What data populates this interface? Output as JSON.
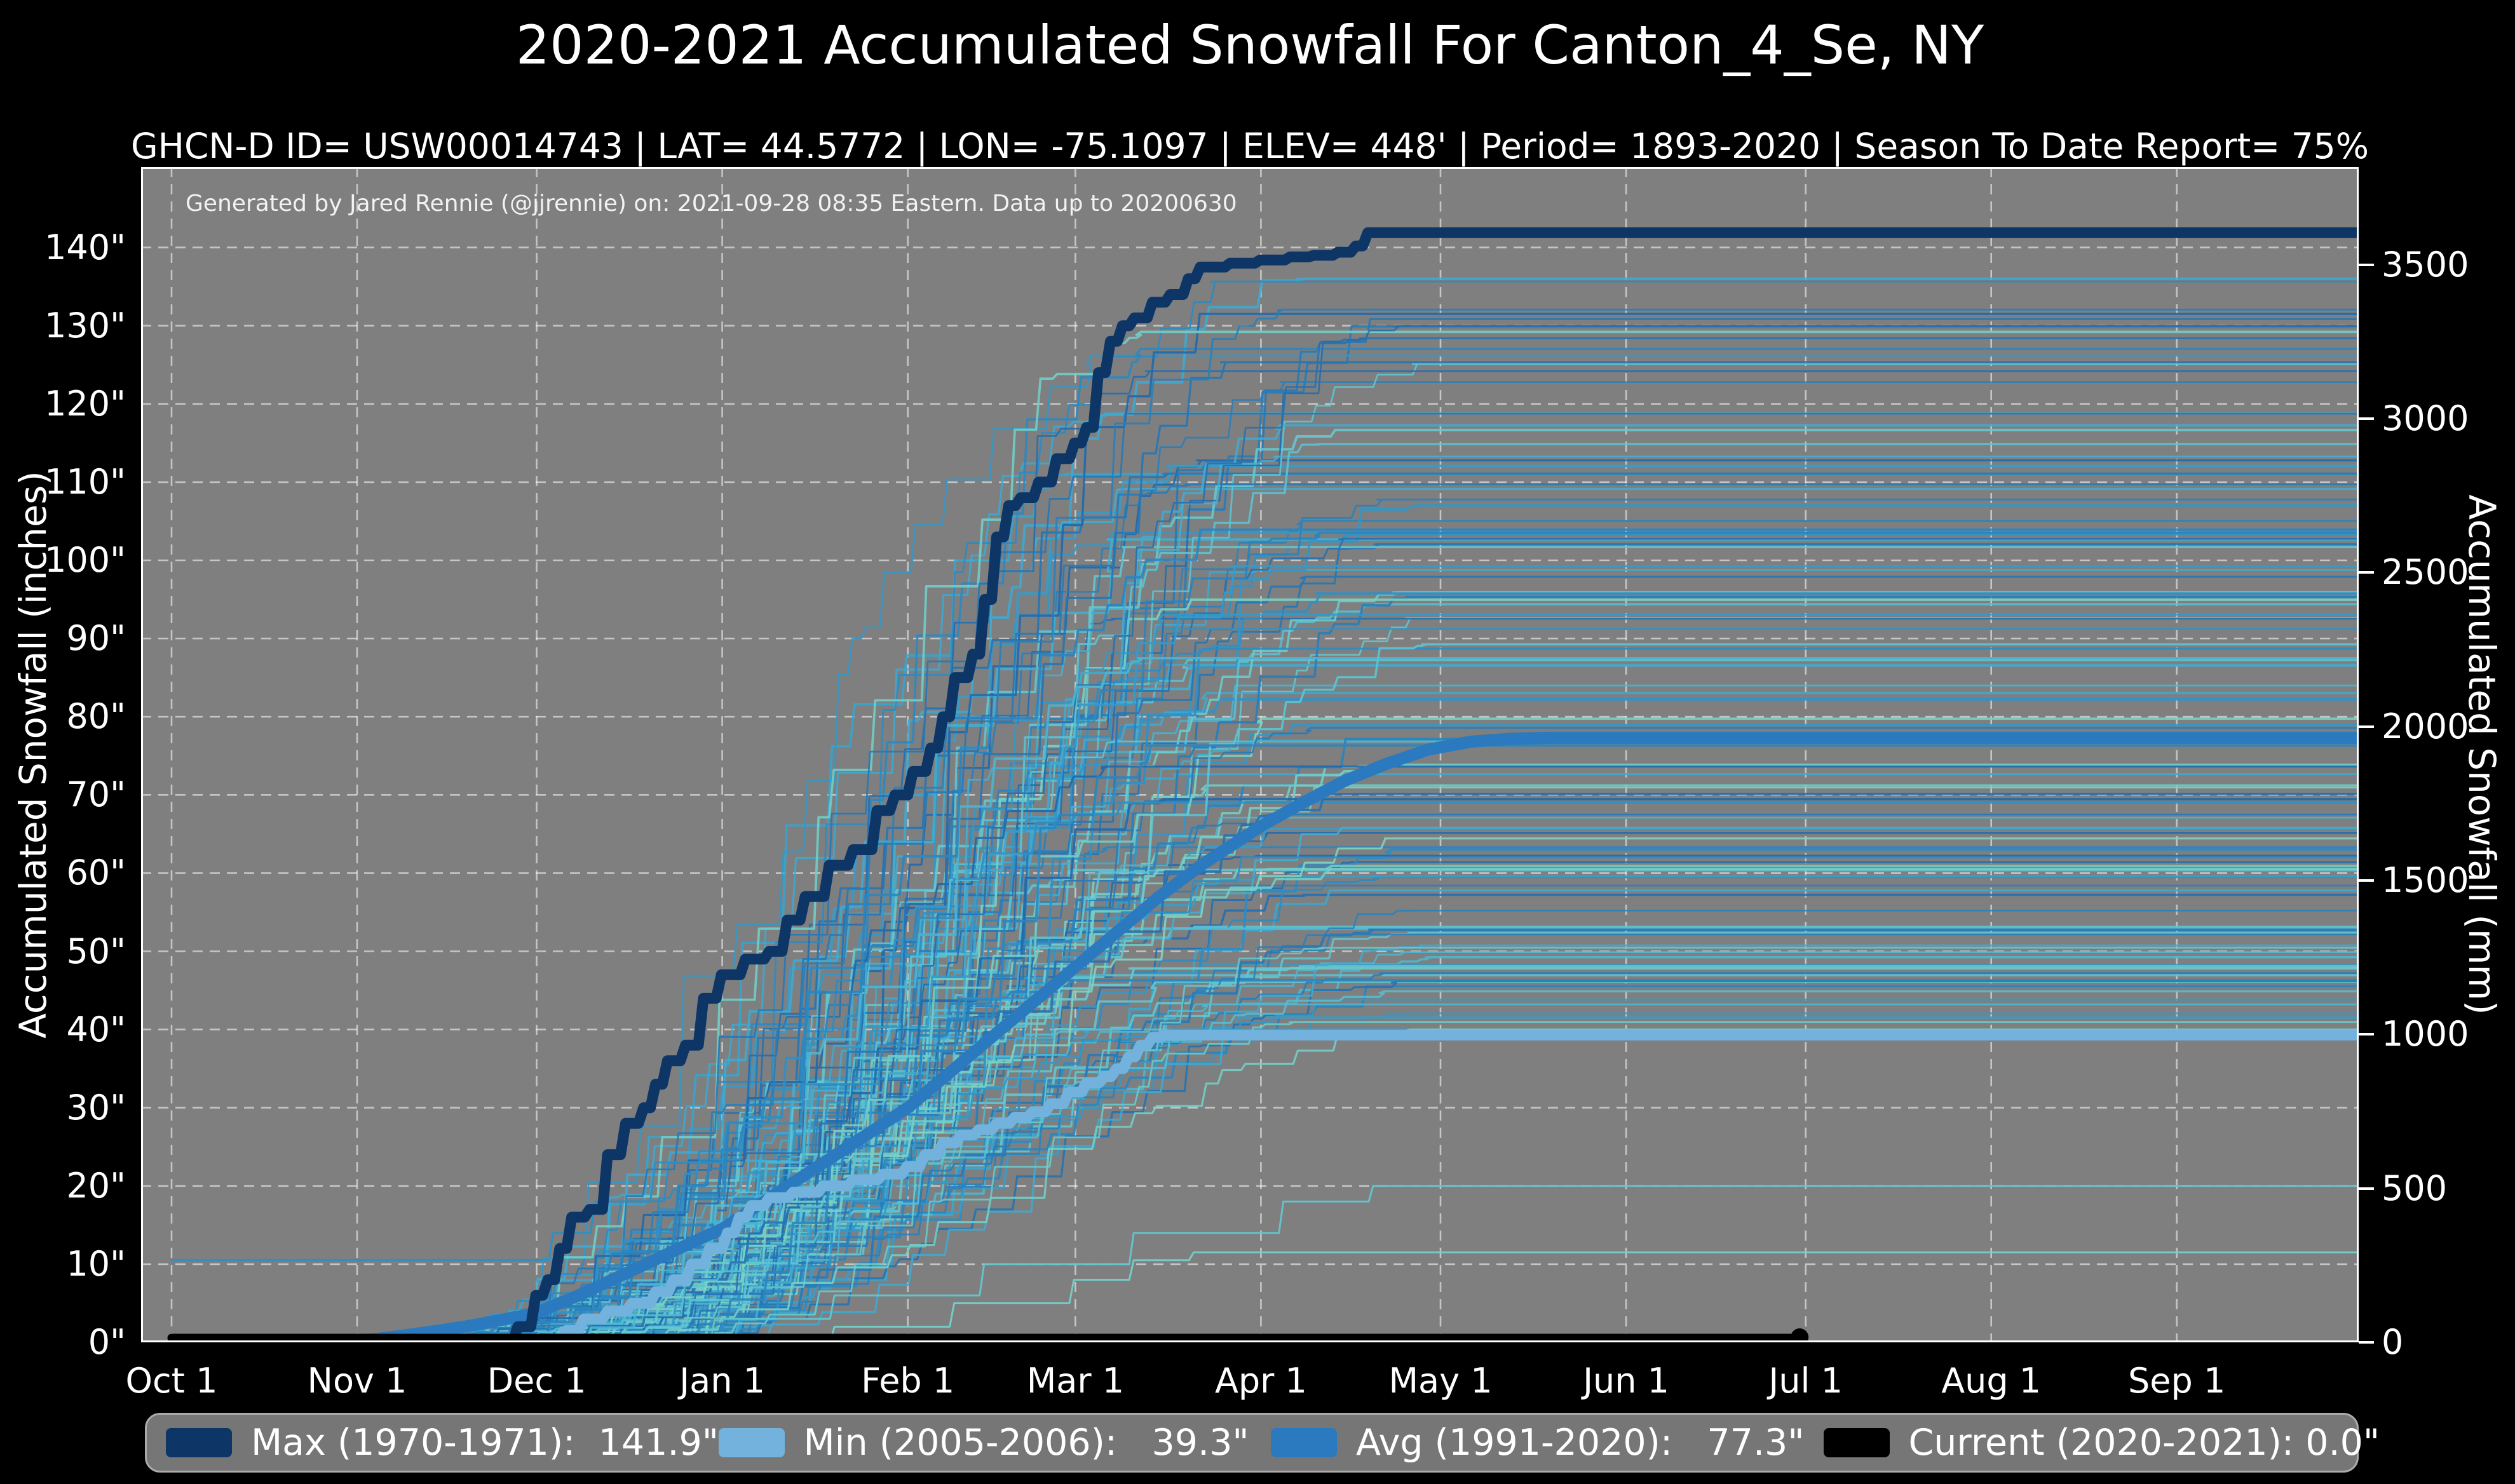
{
  "chart_data": {
    "type": "line",
    "title": "2020-2021 Accumulated Snowfall For Canton_4_Se, NY",
    "subtitle": "GHCN-D ID= USW00014743 | LAT= 44.5772 | LON= -75.1097 | ELEV= 448' | Period= 1893-2020 | Season To Date Report= 75%",
    "annotation": "Generated by Jared Rennie (@jjrennie) on: 2021-09-28 08:35 Eastern. Data up to 20200630",
    "plot": {
      "background": "#7f7f7f",
      "grid_color": "rgba(255,255,255,0.55)",
      "spine_color": "#ffffff",
      "page_background": "#000000"
    },
    "x_axis": {
      "label": "",
      "unit": "day of season (Oct 1 = 0)",
      "tick_labels": [
        "Oct 1",
        "Nov 1",
        "Dec 1",
        "Jan 1",
        "Feb 1",
        "Mar 1",
        "Apr 1",
        "May 1",
        "Jun 1",
        "Jul 1",
        "Aug 1",
        "Sep 1"
      ],
      "tick_days": [
        0,
        31,
        61,
        92,
        123,
        151,
        182,
        212,
        243,
        273,
        304,
        335
      ],
      "range_days": [
        0,
        365
      ]
    },
    "y_axis_left": {
      "label": "Accumulated Snowfall (inches)",
      "tick_labels": [
        "0\"",
        "10\"",
        "20\"",
        "30\"",
        "40\"",
        "50\"",
        "60\"",
        "70\"",
        "80\"",
        "90\"",
        "100\"",
        "110\"",
        "120\"",
        "130\"",
        "140\""
      ],
      "tick_values": [
        0,
        10,
        20,
        30,
        40,
        50,
        60,
        70,
        80,
        90,
        100,
        110,
        120,
        130,
        140
      ],
      "ylim_inches": [
        0,
        150.3
      ]
    },
    "y_axis_right": {
      "label": "Accumulated Snowfall (mm)",
      "tick_labels": [
        "0",
        "500",
        "1000",
        "1500",
        "2000",
        "2500",
        "3000",
        "3500"
      ],
      "tick_values_mm": [
        0,
        500,
        1000,
        1500,
        2000,
        2500,
        3000,
        3500
      ]
    },
    "series": [
      {
        "name": "Max",
        "period": "1970-1971",
        "total_label": "141.9\"",
        "total_inches": 141.9,
        "color": "#0d3566",
        "width": 17,
        "style": "step",
        "extend": true,
        "points": [
          [
            55,
            0
          ],
          [
            57,
            2
          ],
          [
            60,
            6
          ],
          [
            62,
            8
          ],
          [
            64,
            12
          ],
          [
            66,
            16
          ],
          [
            69,
            17
          ],
          [
            72,
            24
          ],
          [
            75,
            28
          ],
          [
            78,
            30
          ],
          [
            80,
            33
          ],
          [
            82,
            36
          ],
          [
            85,
            38
          ],
          [
            88,
            44
          ],
          [
            91,
            47
          ],
          [
            95,
            49
          ],
          [
            99,
            50
          ],
          [
            102,
            54
          ],
          [
            105,
            57
          ],
          [
            109,
            61
          ],
          [
            113,
            63
          ],
          [
            117,
            68
          ],
          [
            120,
            70
          ],
          [
            123,
            73
          ],
          [
            126,
            76
          ],
          [
            128,
            80
          ],
          [
            130,
            85
          ],
          [
            133,
            88
          ],
          [
            135,
            95
          ],
          [
            137,
            103
          ],
          [
            139,
            107
          ],
          [
            141,
            108
          ],
          [
            144,
            110
          ],
          [
            147,
            113
          ],
          [
            150,
            115
          ],
          [
            152,
            117
          ],
          [
            154,
            124
          ],
          [
            156,
            128
          ],
          [
            158,
            130
          ],
          [
            160,
            131
          ],
          [
            163,
            133
          ],
          [
            166,
            134
          ],
          [
            169,
            136
          ],
          [
            171,
            137.5
          ],
          [
            176,
            138
          ],
          [
            181,
            138.4
          ],
          [
            186,
            138.8
          ],
          [
            190,
            139
          ],
          [
            194,
            139.4
          ],
          [
            197,
            140.2
          ],
          [
            199,
            141.9
          ]
        ]
      },
      {
        "name": "Min",
        "period": "2005-2006",
        "total_label": "39.3\"",
        "total_inches": 39.3,
        "color": "#72b2dc",
        "width": 17,
        "style": "step",
        "extend": true,
        "points": [
          [
            63,
            0
          ],
          [
            65,
            1.5
          ],
          [
            68,
            3
          ],
          [
            72,
            4
          ],
          [
            76,
            5
          ],
          [
            80,
            6.5
          ],
          [
            83,
            8
          ],
          [
            86,
            10
          ],
          [
            89,
            12
          ],
          [
            92,
            14
          ],
          [
            94,
            16
          ],
          [
            96,
            17.5
          ],
          [
            99,
            18.5
          ],
          [
            103,
            19.2
          ],
          [
            108,
            20
          ],
          [
            113,
            20.8
          ],
          [
            118,
            21.5
          ],
          [
            122,
            22.5
          ],
          [
            125,
            24
          ],
          [
            128,
            25.5
          ],
          [
            131,
            26.5
          ],
          [
            134,
            27.2
          ],
          [
            137,
            28
          ],
          [
            140,
            28.8
          ],
          [
            143,
            29.5
          ],
          [
            146,
            30.5
          ],
          [
            149,
            32
          ],
          [
            152,
            33.2
          ],
          [
            155,
            34
          ],
          [
            157,
            35
          ],
          [
            159,
            36.5
          ],
          [
            161,
            38
          ],
          [
            163,
            39
          ],
          [
            165,
            39.3
          ]
        ]
      },
      {
        "name": "Avg",
        "period": "1991-2020",
        "total_label": "77.3\"",
        "total_inches": 77.3,
        "color": "#2b7abf",
        "width": 19,
        "style": "smooth",
        "extend": true,
        "points": [
          [
            28,
            0
          ],
          [
            35,
            0.5
          ],
          [
            42,
            1.2
          ],
          [
            49,
            2
          ],
          [
            56,
            3
          ],
          [
            61,
            3.8
          ],
          [
            68,
            6
          ],
          [
            75,
            8.5
          ],
          [
            82,
            11
          ],
          [
            89,
            13.5
          ],
          [
            92,
            14.5
          ],
          [
            99,
            18
          ],
          [
            106,
            21.5
          ],
          [
            113,
            25
          ],
          [
            120,
            28.5
          ],
          [
            123,
            30
          ],
          [
            130,
            34.5
          ],
          [
            137,
            39
          ],
          [
            144,
            43.5
          ],
          [
            151,
            48
          ],
          [
            158,
            52.5
          ],
          [
            165,
            57
          ],
          [
            172,
            61
          ],
          [
            179,
            64.5
          ],
          [
            182,
            66
          ],
          [
            189,
            69
          ],
          [
            196,
            71.8
          ],
          [
            203,
            74
          ],
          [
            210,
            75.8
          ],
          [
            217,
            76.8
          ],
          [
            224,
            77.2
          ],
          [
            230,
            77.3
          ]
        ]
      },
      {
        "name": "Current",
        "period": "2020-2021",
        "total_label": "0.0\"",
        "total_inches": 0.0,
        "color": "#000000",
        "width": 13,
        "style": "flat",
        "extend": false,
        "end_dot": true,
        "points": [
          [
            0,
            0
          ],
          [
            272,
            0
          ]
        ]
      }
    ],
    "background_years": {
      "description": "Thin traces for each season 1893-2020; step-accumulation curves plateauing at seasonal totals",
      "count": 124,
      "seed": 20210928,
      "final_totals_range_inches": [
        40,
        136
      ],
      "color_stops": [
        "#7fd4c0",
        "#5bc3d4",
        "#3aa5cf",
        "#2b86c0",
        "#1f66ab"
      ],
      "special_lines": [
        {
          "note": "early October snow season",
          "color": "#2e8fc4",
          "width": 3,
          "points": [
            [
              0,
              10.5
            ],
            [
              57,
              10.5
            ],
            [
              63,
              14
            ],
            [
              70,
              18
            ],
            [
              80,
              23
            ],
            [
              92,
              28
            ],
            [
              105,
              33
            ],
            [
              118,
              38
            ],
            [
              132,
              44
            ],
            [
              146,
              50
            ],
            [
              158,
              55
            ],
            [
              170,
              59
            ],
            [
              178,
              62
            ]
          ]
        },
        {
          "note": "partial low season ~11.5 in",
          "color": "#74d0ca",
          "width": 3,
          "points": [
            [
              95,
              0
            ],
            [
              110,
              2
            ],
            [
              130,
              5
            ],
            [
              150,
              8
            ],
            [
              160,
              10.5
            ],
            [
              170,
              11.5
            ]
          ]
        },
        {
          "note": "partial low season ~20 in",
          "color": "#62c6cf",
          "width": 3,
          "points": [
            [
              70,
              0
            ],
            [
              90,
              3
            ],
            [
              110,
              6
            ],
            [
              135,
              10
            ],
            [
              160,
              14
            ],
            [
              185,
              18
            ],
            [
              200,
              20
            ]
          ]
        }
      ]
    },
    "legend": {
      "items": [
        {
          "label": "Max (1970-1971):  141.9\"",
          "color": "#0d3566"
        },
        {
          "label": "Min (2005-2006):   39.3\"",
          "color": "#72b2dc"
        },
        {
          "label": "Avg (1991-2020):   77.3\"",
          "color": "#2b7abf"
        },
        {
          "label": "Current (2020-2021): 0.0\"",
          "color": "#000000"
        }
      ]
    }
  }
}
